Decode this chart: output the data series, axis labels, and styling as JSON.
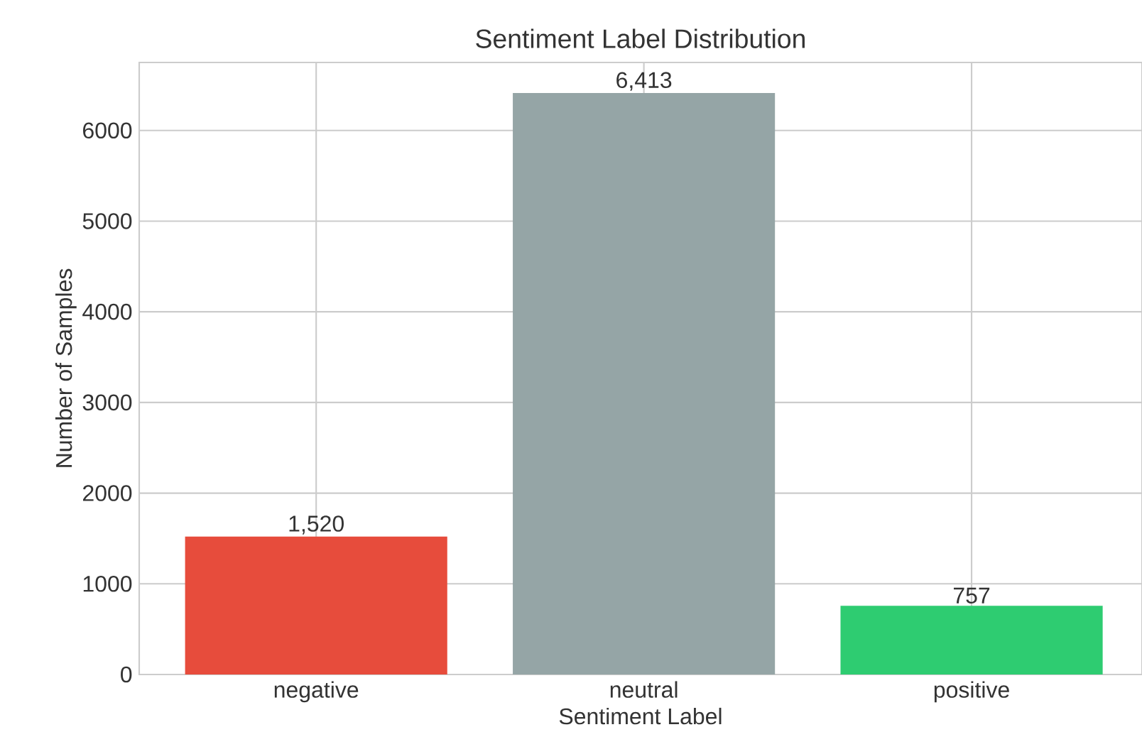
{
  "chart_data": {
    "type": "bar",
    "title": "Sentiment Label Distribution",
    "xlabel": "Sentiment Label",
    "ylabel": "Number of Samples",
    "categories": [
      "negative",
      "neutral",
      "positive"
    ],
    "values": [
      1520,
      6413,
      757
    ],
    "colors": [
      "#e74c3c",
      "#95a5a6",
      "#2ecc71"
    ],
    "value_labels": [
      "1,520",
      "6,413",
      "757"
    ],
    "ylim": [
      0,
      6750
    ],
    "yticks": [
      0,
      1000,
      2000,
      3000,
      4000,
      5000,
      6000
    ],
    "grid": true
  }
}
